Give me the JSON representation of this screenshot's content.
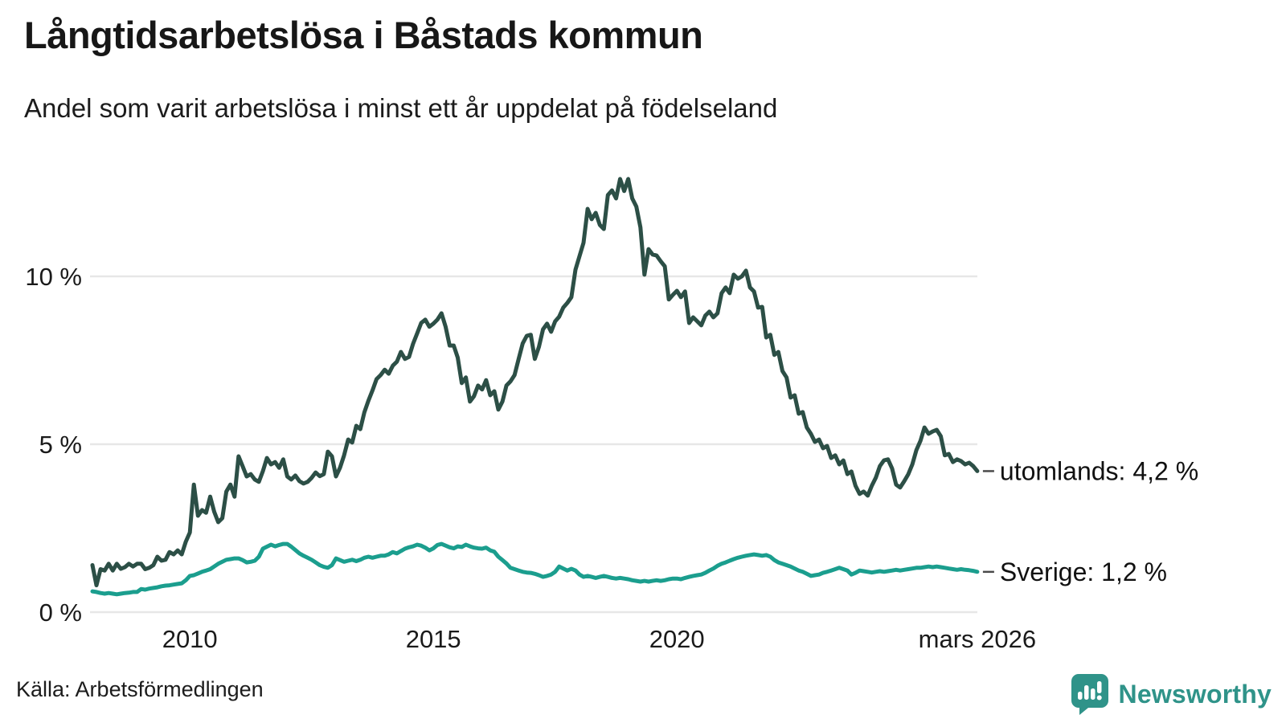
{
  "title": "Långtidsarbetslösa i Båstads kommun",
  "subtitle": "Andel som varit arbetslösa i minst ett år uppdelat på födelseland",
  "source": "Källa: Arbetsförmedlingen",
  "branding": {
    "name": "Newsworthy",
    "icon": "newsworthy-speech-bubble-bar-chart-icon",
    "color": "#2f9389"
  },
  "colors": {
    "utomlands_line": "#2c4f46",
    "sverige_line": "#1b9e8e",
    "grid": "#e7e7e7",
    "axis_text": "#1a1a1a",
    "legend_dash": "#4a4a4a",
    "background": "#ffffff"
  },
  "chart_data": {
    "type": "line",
    "title": "Långtidsarbetslösa i Båstads kommun",
    "subtitle": "Andel som varit arbetslösa i minst ett år uppdelat på födelseland",
    "grid": true,
    "legend_position": "right-of-line-end",
    "x_axis": {
      "range": [
        2008.0,
        2026.25
      ],
      "ticks": [
        {
          "x": 2010,
          "label": "2010"
        },
        {
          "x": 2015,
          "label": "2015"
        },
        {
          "x": 2020,
          "label": "2020"
        },
        {
          "x": 2026.1667,
          "label": "mars 2026"
        }
      ]
    },
    "y_axis": {
      "range": [
        0,
        13.2
      ],
      "unit": "%",
      "ticks": [
        {
          "value": 0,
          "label": "0 %"
        },
        {
          "value": 5,
          "label": "5 %"
        },
        {
          "value": 10,
          "label": "10 %"
        }
      ]
    },
    "series": [
      {
        "name": "utomlands",
        "label": "utomlands: 4,2 %",
        "color": "#2c4f46",
        "start_year": 2008,
        "step_months": 1,
        "end_label_value": "4,2 %",
        "values": [
          1.4,
          0.8,
          1.28,
          1.24,
          1.44,
          1.24,
          1.44,
          1.29,
          1.34,
          1.44,
          1.36,
          1.44,
          1.44,
          1.28,
          1.32,
          1.4,
          1.65,
          1.53,
          1.56,
          1.79,
          1.72,
          1.84,
          1.72,
          2.1,
          2.37,
          3.8,
          2.87,
          3.04,
          2.96,
          3.44,
          2.99,
          2.68,
          2.8,
          3.59,
          3.8,
          3.44,
          4.64,
          4.35,
          4.04,
          4.11,
          3.95,
          3.88,
          4.2,
          4.59,
          4.4,
          4.47,
          4.3,
          4.55,
          4.04,
          3.95,
          4.07,
          3.9,
          3.83,
          3.88,
          4.0,
          4.16,
          4.05,
          4.11,
          4.78,
          4.64,
          4.04,
          4.3,
          4.67,
          5.14,
          5.05,
          5.55,
          5.45,
          5.95,
          6.3,
          6.6,
          6.94,
          7.06,
          7.22,
          7.1,
          7.34,
          7.46,
          7.75,
          7.54,
          7.6,
          7.99,
          8.3,
          8.61,
          8.71,
          8.5,
          8.59,
          8.71,
          8.9,
          8.5,
          7.94,
          7.94,
          7.58,
          6.82,
          6.99,
          6.27,
          6.43,
          6.75,
          6.63,
          6.91,
          6.46,
          6.58,
          6.03,
          6.27,
          6.75,
          6.87,
          7.06,
          7.54,
          8.0,
          8.23,
          8.26,
          7.54,
          7.9,
          8.42,
          8.59,
          8.35,
          8.66,
          8.8,
          9.07,
          9.21,
          9.38,
          10.2,
          10.6,
          11.0,
          12.01,
          11.7,
          11.89,
          11.53,
          11.41,
          12.42,
          12.56,
          12.32,
          12.9,
          12.54,
          12.9,
          12.32,
          12.08,
          11.46,
          10.05,
          10.81,
          10.65,
          10.62,
          10.45,
          10.3,
          9.31,
          9.45,
          9.57,
          9.38,
          9.55,
          8.61,
          8.78,
          8.66,
          8.54,
          8.83,
          8.95,
          8.78,
          8.9,
          9.5,
          9.67,
          9.5,
          10.05,
          9.93,
          10.0,
          10.17,
          9.67,
          9.55,
          9.07,
          9.09,
          8.18,
          8.26,
          7.66,
          7.75,
          7.18,
          6.99,
          6.39,
          6.46,
          5.91,
          5.96,
          5.5,
          5.31,
          5.07,
          5.14,
          4.88,
          4.95,
          4.59,
          4.67,
          4.4,
          4.52,
          4.11,
          4.19,
          3.76,
          3.52,
          3.59,
          3.47,
          3.76,
          4.0,
          4.35,
          4.52,
          4.55,
          4.28,
          3.8,
          3.71,
          3.9,
          4.11,
          4.4,
          4.83,
          5.1,
          5.5,
          5.31,
          5.38,
          5.43,
          5.24,
          4.67,
          4.71,
          4.47,
          4.55,
          4.5,
          4.4,
          4.45,
          4.35,
          4.2
        ]
      },
      {
        "name": "Sverige",
        "label": "Sverige: 1,2 %",
        "color": "#1b9e8e",
        "start_year": 2008,
        "step_months": 1,
        "end_label_value": "1,2 %",
        "values": [
          0.62,
          0.6,
          0.57,
          0.55,
          0.57,
          0.55,
          0.53,
          0.55,
          0.57,
          0.58,
          0.6,
          0.6,
          0.69,
          0.67,
          0.7,
          0.72,
          0.74,
          0.77,
          0.79,
          0.8,
          0.82,
          0.84,
          0.86,
          0.95,
          1.08,
          1.1,
          1.15,
          1.2,
          1.24,
          1.28,
          1.36,
          1.44,
          1.5,
          1.56,
          1.58,
          1.6,
          1.6,
          1.55,
          1.48,
          1.5,
          1.53,
          1.65,
          1.89,
          1.95,
          2.01,
          1.96,
          2.0,
          2.03,
          2.03,
          1.95,
          1.85,
          1.75,
          1.68,
          1.62,
          1.56,
          1.48,
          1.4,
          1.35,
          1.32,
          1.4,
          1.6,
          1.55,
          1.5,
          1.53,
          1.56,
          1.52,
          1.56,
          1.62,
          1.65,
          1.62,
          1.65,
          1.68,
          1.68,
          1.72,
          1.79,
          1.75,
          1.82,
          1.89,
          1.93,
          1.96,
          2.01,
          1.98,
          1.92,
          1.84,
          1.9,
          2.0,
          2.03,
          1.98,
          1.93,
          1.9,
          1.96,
          1.94,
          2.01,
          1.96,
          1.92,
          1.9,
          1.89,
          1.92,
          1.84,
          1.8,
          1.65,
          1.55,
          1.45,
          1.32,
          1.28,
          1.24,
          1.2,
          1.18,
          1.17,
          1.14,
          1.1,
          1.05,
          1.08,
          1.12,
          1.2,
          1.36,
          1.3,
          1.24,
          1.29,
          1.24,
          1.12,
          1.05,
          1.08,
          1.05,
          1.02,
          1.05,
          1.08,
          1.05,
          1.02,
          1.0,
          1.02,
          1.0,
          0.98,
          0.95,
          0.93,
          0.91,
          0.93,
          0.91,
          0.93,
          0.95,
          0.93,
          0.95,
          0.98,
          1.0,
          1.0,
          0.98,
          1.02,
          1.05,
          1.08,
          1.1,
          1.12,
          1.17,
          1.24,
          1.3,
          1.38,
          1.44,
          1.48,
          1.53,
          1.58,
          1.62,
          1.65,
          1.68,
          1.7,
          1.72,
          1.7,
          1.68,
          1.7,
          1.65,
          1.55,
          1.48,
          1.44,
          1.4,
          1.36,
          1.3,
          1.24,
          1.2,
          1.14,
          1.08,
          1.1,
          1.12,
          1.17,
          1.2,
          1.24,
          1.28,
          1.32,
          1.28,
          1.24,
          1.12,
          1.17,
          1.24,
          1.22,
          1.2,
          1.18,
          1.2,
          1.22,
          1.2,
          1.22,
          1.24,
          1.26,
          1.24,
          1.26,
          1.28,
          1.3,
          1.32,
          1.32,
          1.34,
          1.36,
          1.34,
          1.36,
          1.34,
          1.32,
          1.3,
          1.28,
          1.26,
          1.28,
          1.26,
          1.25,
          1.23,
          1.2
        ]
      }
    ]
  }
}
